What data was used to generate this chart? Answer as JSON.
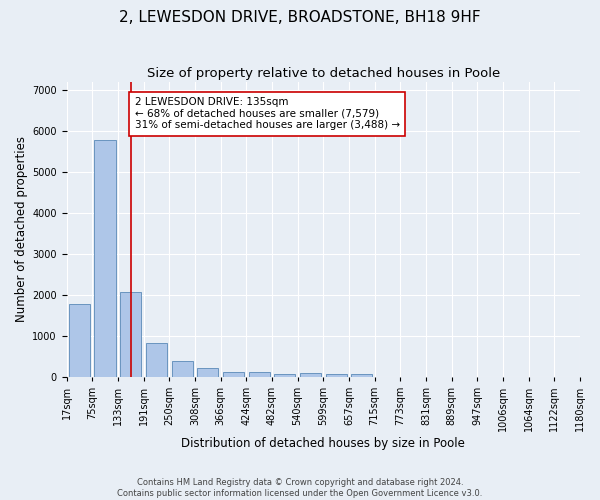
{
  "title": "2, LEWESDON DRIVE, BROADSTONE, BH18 9HF",
  "subtitle": "Size of property relative to detached houses in Poole",
  "xlabel": "Distribution of detached houses by size in Poole",
  "ylabel": "Number of detached properties",
  "footer_line1": "Contains HM Land Registry data © Crown copyright and database right 2024.",
  "footer_line2": "Contains public sector information licensed under the Open Government Licence v3.0.",
  "bar_indices": [
    0,
    1,
    2,
    3,
    4,
    5,
    6,
    7,
    8,
    9,
    10,
    11,
    12,
    13,
    14,
    15,
    16,
    17,
    18,
    19
  ],
  "bar_heights": [
    1780,
    5780,
    2060,
    830,
    390,
    220,
    120,
    120,
    80,
    100,
    60,
    60,
    0,
    0,
    0,
    0,
    0,
    0,
    0,
    0
  ],
  "xtick_labels": [
    "17sqm",
    "75sqm",
    "133sqm",
    "191sqm",
    "250sqm",
    "308sqm",
    "366sqm",
    "424sqm",
    "482sqm",
    "540sqm",
    "599sqm",
    "657sqm",
    "715sqm",
    "773sqm",
    "831sqm",
    "889sqm",
    "947sqm",
    "1006sqm",
    "1064sqm",
    "1122sqm",
    "1180sqm"
  ],
  "bar_color": "#aec6e8",
  "bar_edge_color": "#5a8ab8",
  "property_bar_index": 2,
  "property_line_color": "#cc0000",
  "annotation_text": "2 LEWESDON DRIVE: 135sqm\n← 68% of detached houses are smaller (7,579)\n31% of semi-detached houses are larger (3,488) →",
  "annotation_box_facecolor": "#ffffff",
  "annotation_box_edgecolor": "#cc0000",
  "ylim": [
    0,
    7200
  ],
  "yticks": [
    0,
    1000,
    2000,
    3000,
    4000,
    5000,
    6000,
    7000
  ],
  "background_color": "#e8eef5",
  "axes_background": "#e8eef5",
  "grid_color": "#ffffff",
  "title_fontsize": 11,
  "subtitle_fontsize": 9.5,
  "axis_label_fontsize": 8.5,
  "tick_fontsize": 7,
  "annotation_fontsize": 7.5,
  "footer_fontsize": 6
}
